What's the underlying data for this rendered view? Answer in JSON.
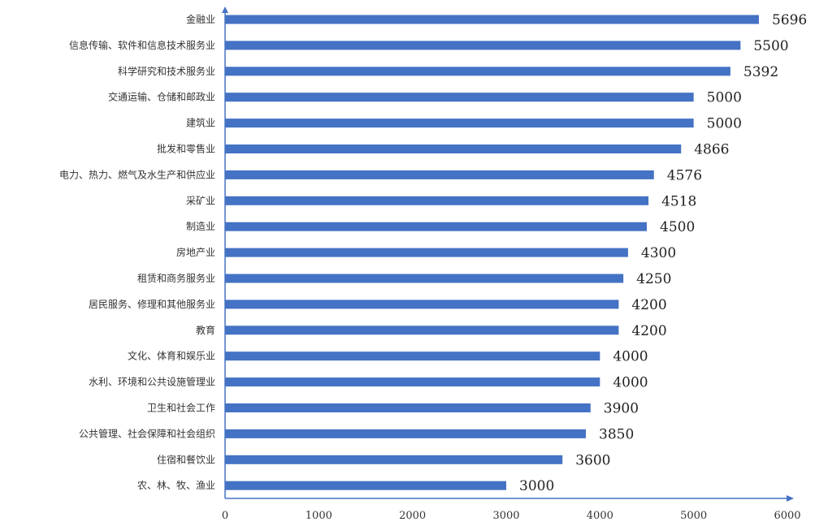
{
  "chart_data": {
    "type": "bar",
    "orientation": "horizontal",
    "categories": [
      "金融业",
      "信息传输、软件和信息技术服务业",
      "科学研究和技术服务业",
      "交通运输、仓储和邮政业",
      "建筑业",
      "批发和零售业",
      "电力、热力、燃气及水生产和供应业",
      "采矿业",
      "制造业",
      "房地产业",
      "租赁和商务服务业",
      "居民服务、修理和其他服务业",
      "教育",
      "文化、体育和娱乐业",
      "水利、环境和公共设施管理业",
      "卫生和社会工作",
      "公共管理、社会保障和社会组织",
      "住宿和餐饮业",
      "农、林、牧、渔业"
    ],
    "values": [
      5696,
      5500,
      5392,
      5000,
      5000,
      4866,
      4576,
      4518,
      4500,
      4300,
      4250,
      4200,
      4200,
      4000,
      4000,
      3900,
      3850,
      3600,
      3000
    ],
    "x_ticks": [
      "0",
      "1000",
      "2000",
      "3000",
      "4000",
      "5000",
      "6000"
    ],
    "xlim": [
      0,
      6000
    ],
    "title": "",
    "xlabel": "",
    "ylabel": "",
    "grid": false,
    "legend": "none",
    "bar_color": "#4472C4",
    "axis_color": "#4472C4"
  }
}
